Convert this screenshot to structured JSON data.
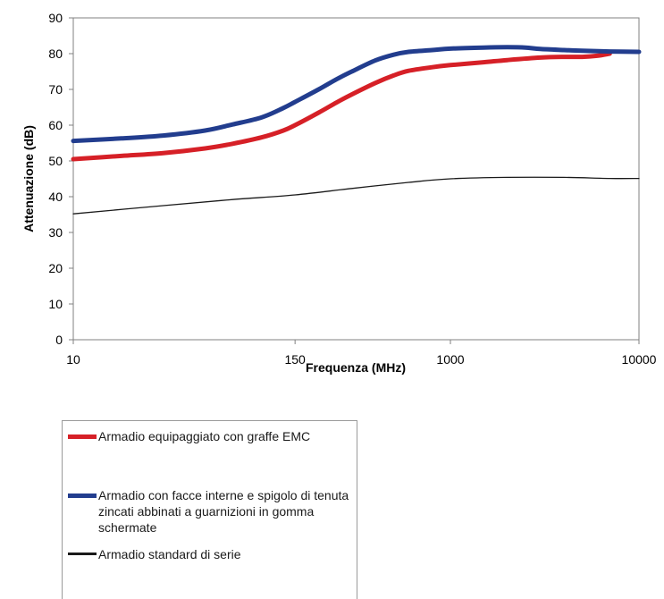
{
  "chart_data": {
    "type": "line",
    "xlabel": "Frequenza  (MHz)",
    "ylabel": "Attenuazione  (dB)",
    "ylim": [
      0,
      90
    ],
    "yticks": [
      0,
      10,
      20,
      30,
      40,
      50,
      60,
      70,
      80,
      90
    ],
    "xscale": "log",
    "xlim": [
      10,
      10000
    ],
    "xtick_labels": [
      "10",
      "150",
      "1000",
      "10000"
    ],
    "grid": false,
    "legend_position": "bottom-left",
    "series": [
      {
        "name": "Armadio equipaggiato con graffe EMC",
        "color": "#d62027",
        "x": [
          10,
          18,
          30,
          50,
          70,
          100,
          130,
          150,
          200,
          250,
          300,
          400,
          500,
          600,
          800,
          1000,
          1500,
          2000,
          3000,
          4000,
          5000,
          6000,
          7000
        ],
        "y": [
          50.5,
          51.4,
          52.2,
          53.5,
          54.8,
          56.6,
          58.5,
          60.0,
          63.5,
          66.4,
          68.6,
          71.8,
          73.9,
          75.2,
          76.2,
          76.8,
          77.6,
          78.2,
          78.9,
          79.1,
          79.1,
          79.4,
          80.0
        ]
      },
      {
        "name": "Armadio con facce interne e spigolo di tenuta zincati abbinati a guarnizioni in gomma schermate",
        "color": "#223d8e",
        "x": [
          10,
          18,
          30,
          50,
          70,
          100,
          130,
          150,
          200,
          250,
          300,
          400,
          500,
          600,
          800,
          1000,
          1500,
          2000,
          2500,
          3000,
          4000,
          5000,
          7000,
          10000
        ],
        "y": [
          55.6,
          56.3,
          57.1,
          58.5,
          60.2,
          62.2,
          64.8,
          66.5,
          70.0,
          72.9,
          75.0,
          78.1,
          79.7,
          80.5,
          81.0,
          81.4,
          81.7,
          81.8,
          81.7,
          81.3,
          81.0,
          80.8,
          80.6,
          80.5
        ]
      },
      {
        "name": "Armadio standard di serie",
        "color": "#1a1a1a",
        "x": [
          10,
          30,
          70,
          150,
          300,
          600,
          1000,
          2000,
          4000,
          7000,
          10000
        ],
        "y": [
          35.2,
          37.5,
          39.2,
          40.5,
          42.3,
          44.0,
          45.0,
          45.4,
          45.4,
          45.1,
          45.1
        ]
      }
    ]
  }
}
